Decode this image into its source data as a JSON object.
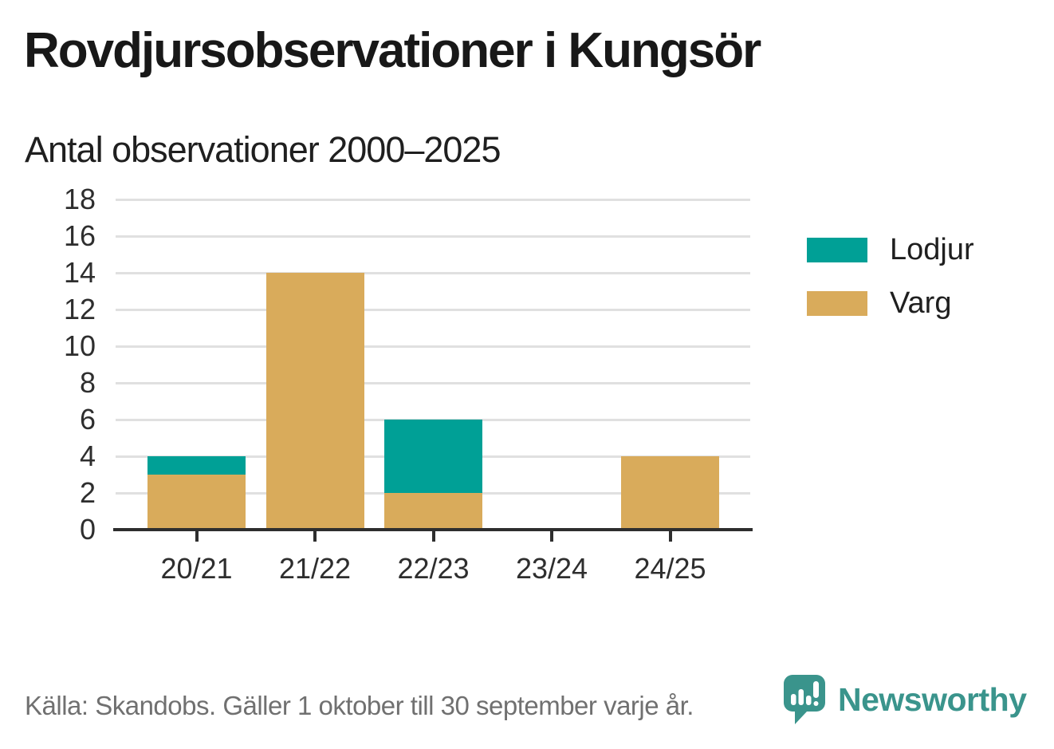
{
  "title": "Rovdjursobservationer i Kungsör",
  "subtitle": "Antal observationer 2000–2025",
  "footer": {
    "source": "Källa: Skandobs. Gäller 1 oktober till 30 september varje år."
  },
  "brand": {
    "name": "Newsworthy",
    "color": "#3a948c",
    "icon": "speech-bubble-bar-chart-exclamation-icon"
  },
  "chart_data": {
    "type": "bar",
    "stacked": true,
    "title": "Rovdjursobservationer i Kungsör",
    "subtitle": "Antal observationer 2000–2025",
    "categories": [
      "20/21",
      "21/22",
      "22/23",
      "23/24",
      "24/25"
    ],
    "series": [
      {
        "name": "Lodjur",
        "color": "#00a096",
        "values": [
          1,
          0,
          4,
          0,
          0
        ]
      },
      {
        "name": "Varg",
        "color": "#d9ab5b",
        "values": [
          3,
          14,
          2,
          0,
          4
        ]
      }
    ],
    "totals": [
      4,
      14,
      6,
      0,
      4
    ],
    "xlabel": "",
    "ylabel": "",
    "ylim": [
      0,
      18
    ],
    "ytick_step": 2,
    "grid": true,
    "grid_color": "#e0e0e0",
    "axis_color": "#2e2e2e",
    "legend_position": "right"
  }
}
